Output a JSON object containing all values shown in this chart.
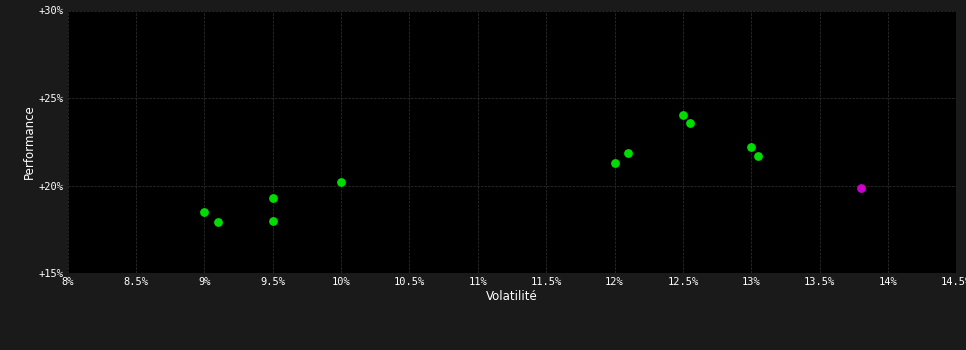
{
  "green_points": [
    [
      9.0,
      18.5
    ],
    [
      9.1,
      17.9
    ],
    [
      9.5,
      17.95
    ],
    [
      9.5,
      19.3
    ],
    [
      10.0,
      20.2
    ],
    [
      12.0,
      21.3
    ],
    [
      12.1,
      21.85
    ],
    [
      12.5,
      24.05
    ],
    [
      12.55,
      23.55
    ],
    [
      13.0,
      22.2
    ],
    [
      13.05,
      21.7
    ]
  ],
  "magenta_points": [
    [
      13.8,
      19.85
    ]
  ],
  "xlim": [
    8.0,
    14.5
  ],
  "ylim": [
    15.0,
    30.0
  ],
  "xticks": [
    8.0,
    8.5,
    9.0,
    9.5,
    10.0,
    10.5,
    11.0,
    11.5,
    12.0,
    12.5,
    13.0,
    13.5,
    14.0,
    14.5
  ],
  "yticks": [
    15.0,
    20.0,
    25.0,
    30.0
  ],
  "xlabel": "Volatilité",
  "ylabel": "Performance",
  "background_color": "#1a1a1a",
  "plot_bg_color": "#000000",
  "grid_color": "#333333",
  "text_color": "#ffffff",
  "green_color": "#00dd00",
  "magenta_color": "#cc00cc",
  "marker_size": 28
}
